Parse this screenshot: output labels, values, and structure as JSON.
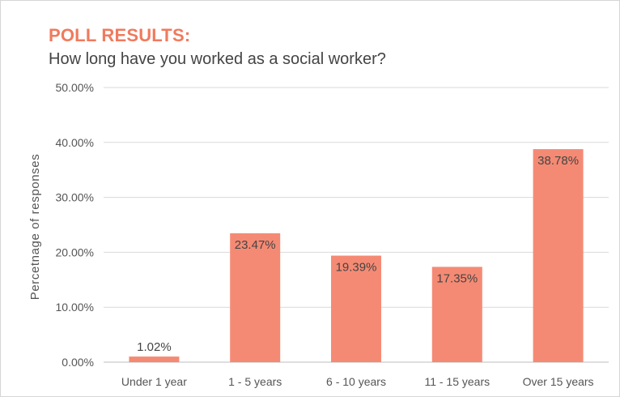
{
  "chart_data": {
    "type": "bar",
    "title": "POLL RESULTS:",
    "subtitle": "How long have you worked as a social worker?",
    "xlabel": "",
    "ylabel": "Percetnage of responses",
    "categories": [
      "Under 1 year",
      "1 - 5 years",
      "6 - 10 years",
      "11 - 15 years",
      "Over 15 years"
    ],
    "values": [
      1.02,
      23.47,
      19.39,
      17.35,
      38.78
    ],
    "data_labels": [
      "1.02%",
      "23.47%",
      "19.39%",
      "17.35%",
      "38.78%"
    ],
    "ylim": [
      0,
      50
    ],
    "yticks": [
      0,
      10,
      20,
      30,
      40,
      50
    ],
    "ytick_labels": [
      "0.00%",
      "10.00%",
      "20.00%",
      "30.00%",
      "40.00%",
      "50.00%"
    ],
    "grid": true,
    "legend": "none",
    "bar_color": "#f58a74",
    "title_color": "#f07a5e"
  }
}
